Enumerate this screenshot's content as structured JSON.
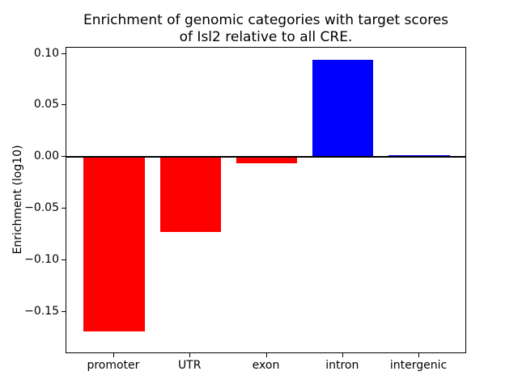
{
  "figure": {
    "title": "Enrichment of genomic categories with target scores\nof Isl2 relative to all CRE.",
    "background": "#ffffff"
  },
  "chart_data": {
    "type": "bar",
    "title": "Enrichment of genomic categories with target scores of Isl2 relative to all CRE.",
    "xlabel": "",
    "ylabel": "Enrichment (log10)",
    "categories": [
      "promoter",
      "UTR",
      "exon",
      "intron",
      "intergenic"
    ],
    "values": [
      -0.169,
      -0.073,
      -0.006,
      0.094,
      0.002
    ],
    "bar_colors": [
      "#ff0000",
      "#ff0000",
      "#ff0000",
      "#0000ff",
      "#0000ff"
    ],
    "negative_color": "#ff0000",
    "positive_color": "#0000ff",
    "ylim": [
      -0.191,
      0.106
    ],
    "yticks": [
      0.1,
      0.05,
      0.0,
      -0.05,
      -0.1,
      -0.15
    ],
    "ytick_labels": [
      "0.10",
      "0.05",
      "0.00",
      "−0.05",
      "−0.10",
      "−0.15"
    ],
    "grid": false,
    "legend": null,
    "zero_line": true,
    "bar_width_fraction": 0.8
  }
}
